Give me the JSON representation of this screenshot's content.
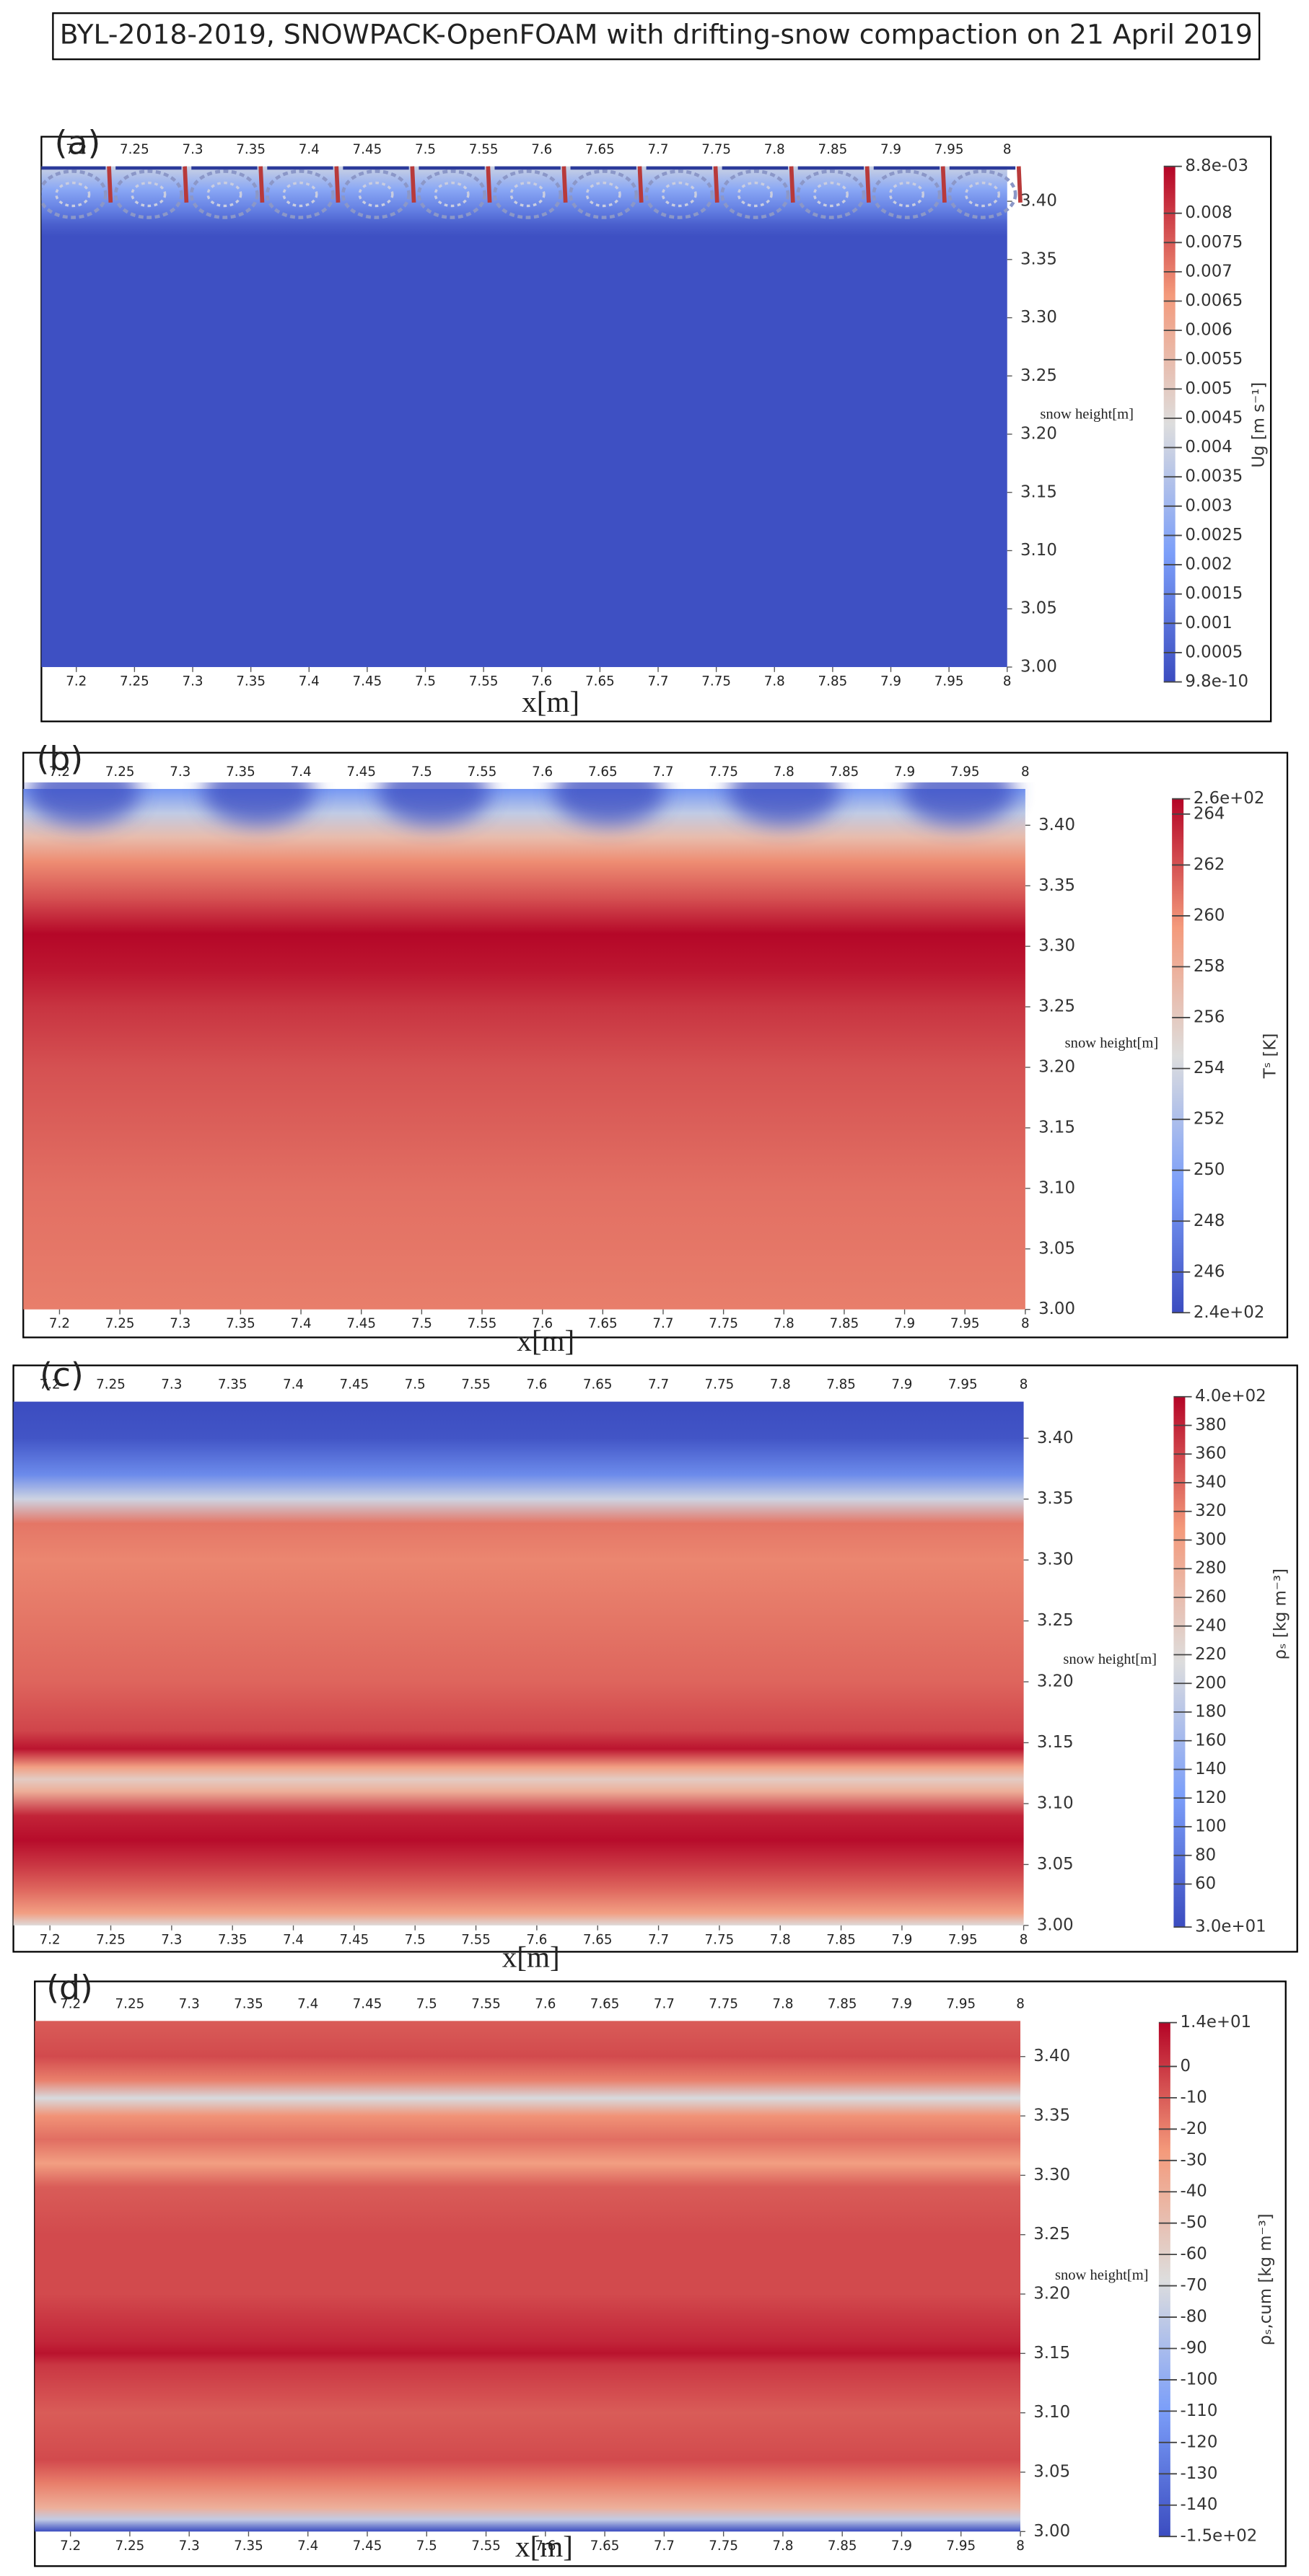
{
  "title": "BYL-2018-2019, SNOWPACK-OpenFOAM with drifting-snow compaction on 21 April 2019",
  "chart_data": [
    {
      "type": "field",
      "panel_label": "(a)",
      "xlabel": "x[m]",
      "ylabel": "snow height[m]",
      "colorbar_label": "Ug [m s⁻¹]",
      "xlim": [
        7.17,
        8
      ],
      "ylim": [
        3.0,
        3.43
      ],
      "xticks": [
        7.2,
        7.25,
        7.3,
        7.35,
        7.4,
        7.45,
        7.5,
        7.55,
        7.6,
        7.65,
        7.7,
        7.75,
        7.8,
        7.85,
        7.9,
        7.95,
        8
      ],
      "yticks": [
        {
          "value": 3.0,
          "label": "3.00"
        },
        3.05,
        {
          "value": 3.1,
          "label": "3.10"
        },
        3.15,
        {
          "value": 3.2,
          "label": "3.20"
        },
        3.25,
        {
          "value": 3.3,
          "label": "3.30"
        },
        3.35,
        {
          "value": 3.4,
          "label": "3.40"
        }
      ],
      "clim": [
        9.8e-10,
        0.0088
      ],
      "cticks": [
        {
          "value": 0.0088,
          "label": "8.8e-03"
        },
        0.008,
        0.0075,
        0.007,
        0.0065,
        0.006,
        0.0055,
        0.005,
        0.0045,
        0.004,
        0.0035,
        0.003,
        0.0025,
        0.002,
        0.0015,
        0.001,
        0.0005,
        {
          "value": 9.8e-10,
          "label": "9.8e-10"
        }
      ],
      "y": [
        3.43,
        3.41,
        3.39,
        3.38,
        3.37,
        3.0
      ],
      "values": [
        0.004,
        0.0025,
        0.0012,
        0.0005,
        0.0001,
        0.0001
      ]
    },
    {
      "type": "field",
      "panel_label": "(b)",
      "xlabel": "x[m]",
      "ylabel": "snow height[m]",
      "colorbar_label": "Tˢ [K]",
      "xlim": [
        7.17,
        8
      ],
      "ylim": [
        3.0,
        3.43
      ],
      "xticks": [
        7.2,
        7.25,
        7.3,
        7.35,
        7.4,
        7.45,
        7.5,
        7.55,
        7.6,
        7.65,
        7.7,
        7.75,
        7.8,
        7.85,
        7.9,
        7.95,
        8
      ],
      "yticks": [
        {
          "value": 3.0,
          "label": "3.00"
        },
        3.05,
        {
          "value": 3.1,
          "label": "3.10"
        },
        3.15,
        {
          "value": 3.2,
          "label": "3.20"
        },
        3.25,
        {
          "value": 3.3,
          "label": "3.30"
        },
        3.35,
        {
          "value": 3.4,
          "label": "3.40"
        }
      ],
      "clim": [
        244.4,
        264.6
      ],
      "cticks": [
        {
          "value": 264.6,
          "label": "2.6e+02"
        },
        264,
        262,
        260,
        258,
        256,
        254,
        252,
        250,
        248,
        246,
        {
          "value": 244.4,
          "label": "2.4e+02"
        }
      ],
      "y": [
        3.43,
        3.41,
        3.39,
        3.37,
        3.34,
        3.31,
        3.28,
        3.25,
        3.2,
        3.15,
        3.1,
        3.0
      ],
      "values": [
        249,
        253,
        257,
        260,
        262,
        264.5,
        264,
        263,
        262,
        261.5,
        261,
        260.5
      ]
    },
    {
      "type": "field",
      "panel_label": "(c)",
      "xlabel": "x[m]",
      "ylabel": "snow height[m]",
      "colorbar_label": "ρₛ [kg m⁻³]",
      "xlim": [
        7.17,
        8
      ],
      "ylim": [
        3.0,
        3.43
      ],
      "xticks": [
        7.2,
        7.25,
        7.3,
        7.35,
        7.4,
        7.45,
        7.5,
        7.55,
        7.6,
        7.65,
        7.7,
        7.75,
        7.8,
        7.85,
        7.9,
        7.95,
        8
      ],
      "yticks": [
        {
          "value": 3.0,
          "label": "3.00"
        },
        3.05,
        {
          "value": 3.1,
          "label": "3.10"
        },
        3.15,
        {
          "value": 3.2,
          "label": "3.20"
        },
        3.25,
        {
          "value": 3.3,
          "label": "3.30"
        },
        3.35,
        {
          "value": 3.4,
          "label": "3.40"
        }
      ],
      "clim": [
        30,
        400
      ],
      "cticks": [
        {
          "value": 400,
          "label": "4.0e+02"
        },
        380,
        360,
        340,
        320,
        300,
        280,
        260,
        240,
        220,
        200,
        180,
        160,
        140,
        120,
        100,
        80,
        60,
        {
          "value": 30,
          "label": "3.0e+01"
        }
      ],
      "y": [
        3.43,
        3.4,
        3.37,
        3.35,
        3.33,
        3.3,
        3.25,
        3.2,
        3.16,
        3.145,
        3.13,
        3.12,
        3.11,
        3.09,
        3.07,
        3.05,
        3.03,
        3.01,
        3.0
      ],
      "values": [
        30,
        40,
        100,
        200,
        330,
        320,
        330,
        340,
        360,
        390,
        300,
        240,
        280,
        380,
        395,
        370,
        340,
        300,
        220
      ]
    },
    {
      "type": "field",
      "panel_label": "(d)",
      "xlabel": "x[m]",
      "ylabel": "snow height[m]",
      "colorbar_label": "ρₛ,cum [kg m⁻³]",
      "xlim": [
        7.17,
        8
      ],
      "ylim": [
        3.0,
        3.43
      ],
      "xticks": [
        7.2,
        7.25,
        7.3,
        7.35,
        7.4,
        7.45,
        7.5,
        7.55,
        7.6,
        7.65,
        7.7,
        7.75,
        7.8,
        7.85,
        7.9,
        7.95,
        8
      ],
      "yticks": [
        {
          "value": 3.0,
          "label": "3.00"
        },
        3.05,
        {
          "value": 3.1,
          "label": "3.10"
        },
        3.15,
        {
          "value": 3.2,
          "label": "3.20"
        },
        3.25,
        {
          "value": 3.3,
          "label": "3.30"
        },
        3.35,
        {
          "value": 3.4,
          "label": "3.40"
        }
      ],
      "clim": [
        -150,
        14
      ],
      "cticks": [
        {
          "value": 14,
          "label": "1.4e+01"
        },
        0,
        -10,
        -20,
        -30,
        -40,
        -50,
        -60,
        -70,
        -80,
        -90,
        -100,
        -110,
        -120,
        -130,
        -140,
        {
          "value": -150,
          "label": "-1.5e+02"
        }
      ],
      "y": [
        3.43,
        3.4,
        3.38,
        3.365,
        3.35,
        3.33,
        3.31,
        3.29,
        3.25,
        3.2,
        3.16,
        3.15,
        3.14,
        3.1,
        3.06,
        3.04,
        3.02,
        3.01,
        3.0
      ],
      "values": [
        -10,
        -5,
        -20,
        -70,
        -25,
        -15,
        -30,
        -10,
        -5,
        -5,
        5,
        10,
        0,
        -10,
        -5,
        -20,
        -40,
        -80,
        -150
      ]
    }
  ]
}
